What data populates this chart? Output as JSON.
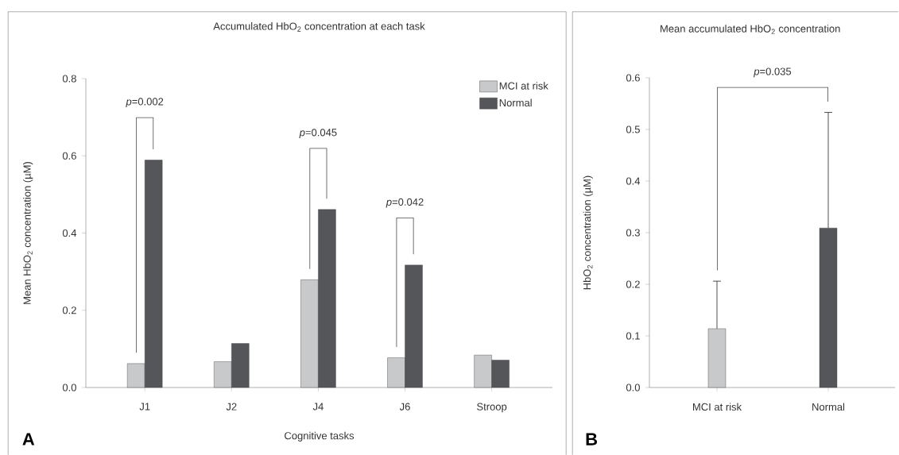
{
  "chart_data": [
    {
      "type": "bar",
      "title": "Accumulated HbO$_{2}$ concentration at each task",
      "xlabel": "Cognitive tasks",
      "ylabel": "Mean HbO$_{2}$ concentration (µM)",
      "categories": [
        "J1",
        "J2",
        "J4",
        "J6",
        "Stroop"
      ],
      "series": [
        {
          "name": "MCI at risk",
          "color": "#c8c9cb",
          "values": [
            0.062,
            0.067,
            0.279,
            0.077,
            0.084
          ]
        },
        {
          "name": "Normal",
          "color": "#55565a",
          "values": [
            0.589,
            0.114,
            0.461,
            0.317,
            0.071
          ]
        }
      ],
      "ylim": [
        0,
        0.8
      ],
      "yticks": [
        {
          "value": 0,
          "label": "0.0"
        },
        {
          "value": 0.2,
          "label": "0.2"
        },
        {
          "value": 0.4,
          "label": "0.4"
        },
        {
          "value": 0.6,
          "label": "0.6"
        },
        {
          "value": 0.8,
          "label": "0.8"
        }
      ],
      "legend": "top right",
      "annotations": [
        "A",
        "*p*=0.002",
        "*p*=0.045",
        "*p*=0.042"
      ]
    },
    {
      "type": "bar",
      "title": "Mean accumulated HbO$_{2}$ concentration",
      "ylabel": "HbO$_{2}$ concentration (µM)",
      "categories": [
        "MCI at risk",
        "Normal"
      ],
      "values": [
        0.114,
        0.309
      ],
      "colors": [
        "#c8c9cb",
        "#55565a"
      ],
      "errors": [
        [
          0.114,
          0.206
        ],
        [
          0.309,
          0.533
        ]
      ],
      "ylim": [
        0,
        0.6
      ],
      "yticks": [
        {
          "value": 0,
          "label": "0.0"
        },
        {
          "value": 0.1,
          "label": "0.1"
        },
        {
          "value": 0.2,
          "label": "0.2"
        },
        {
          "value": 0.3,
          "label": "0.3"
        },
        {
          "value": 0.4,
          "label": "0.4"
        },
        {
          "value": 0.5,
          "label": "0.5"
        },
        {
          "value": 0.6,
          "label": "0.6"
        }
      ],
      "annotations": [
        "B",
        "*p*=0.035"
      ]
    }
  ]
}
